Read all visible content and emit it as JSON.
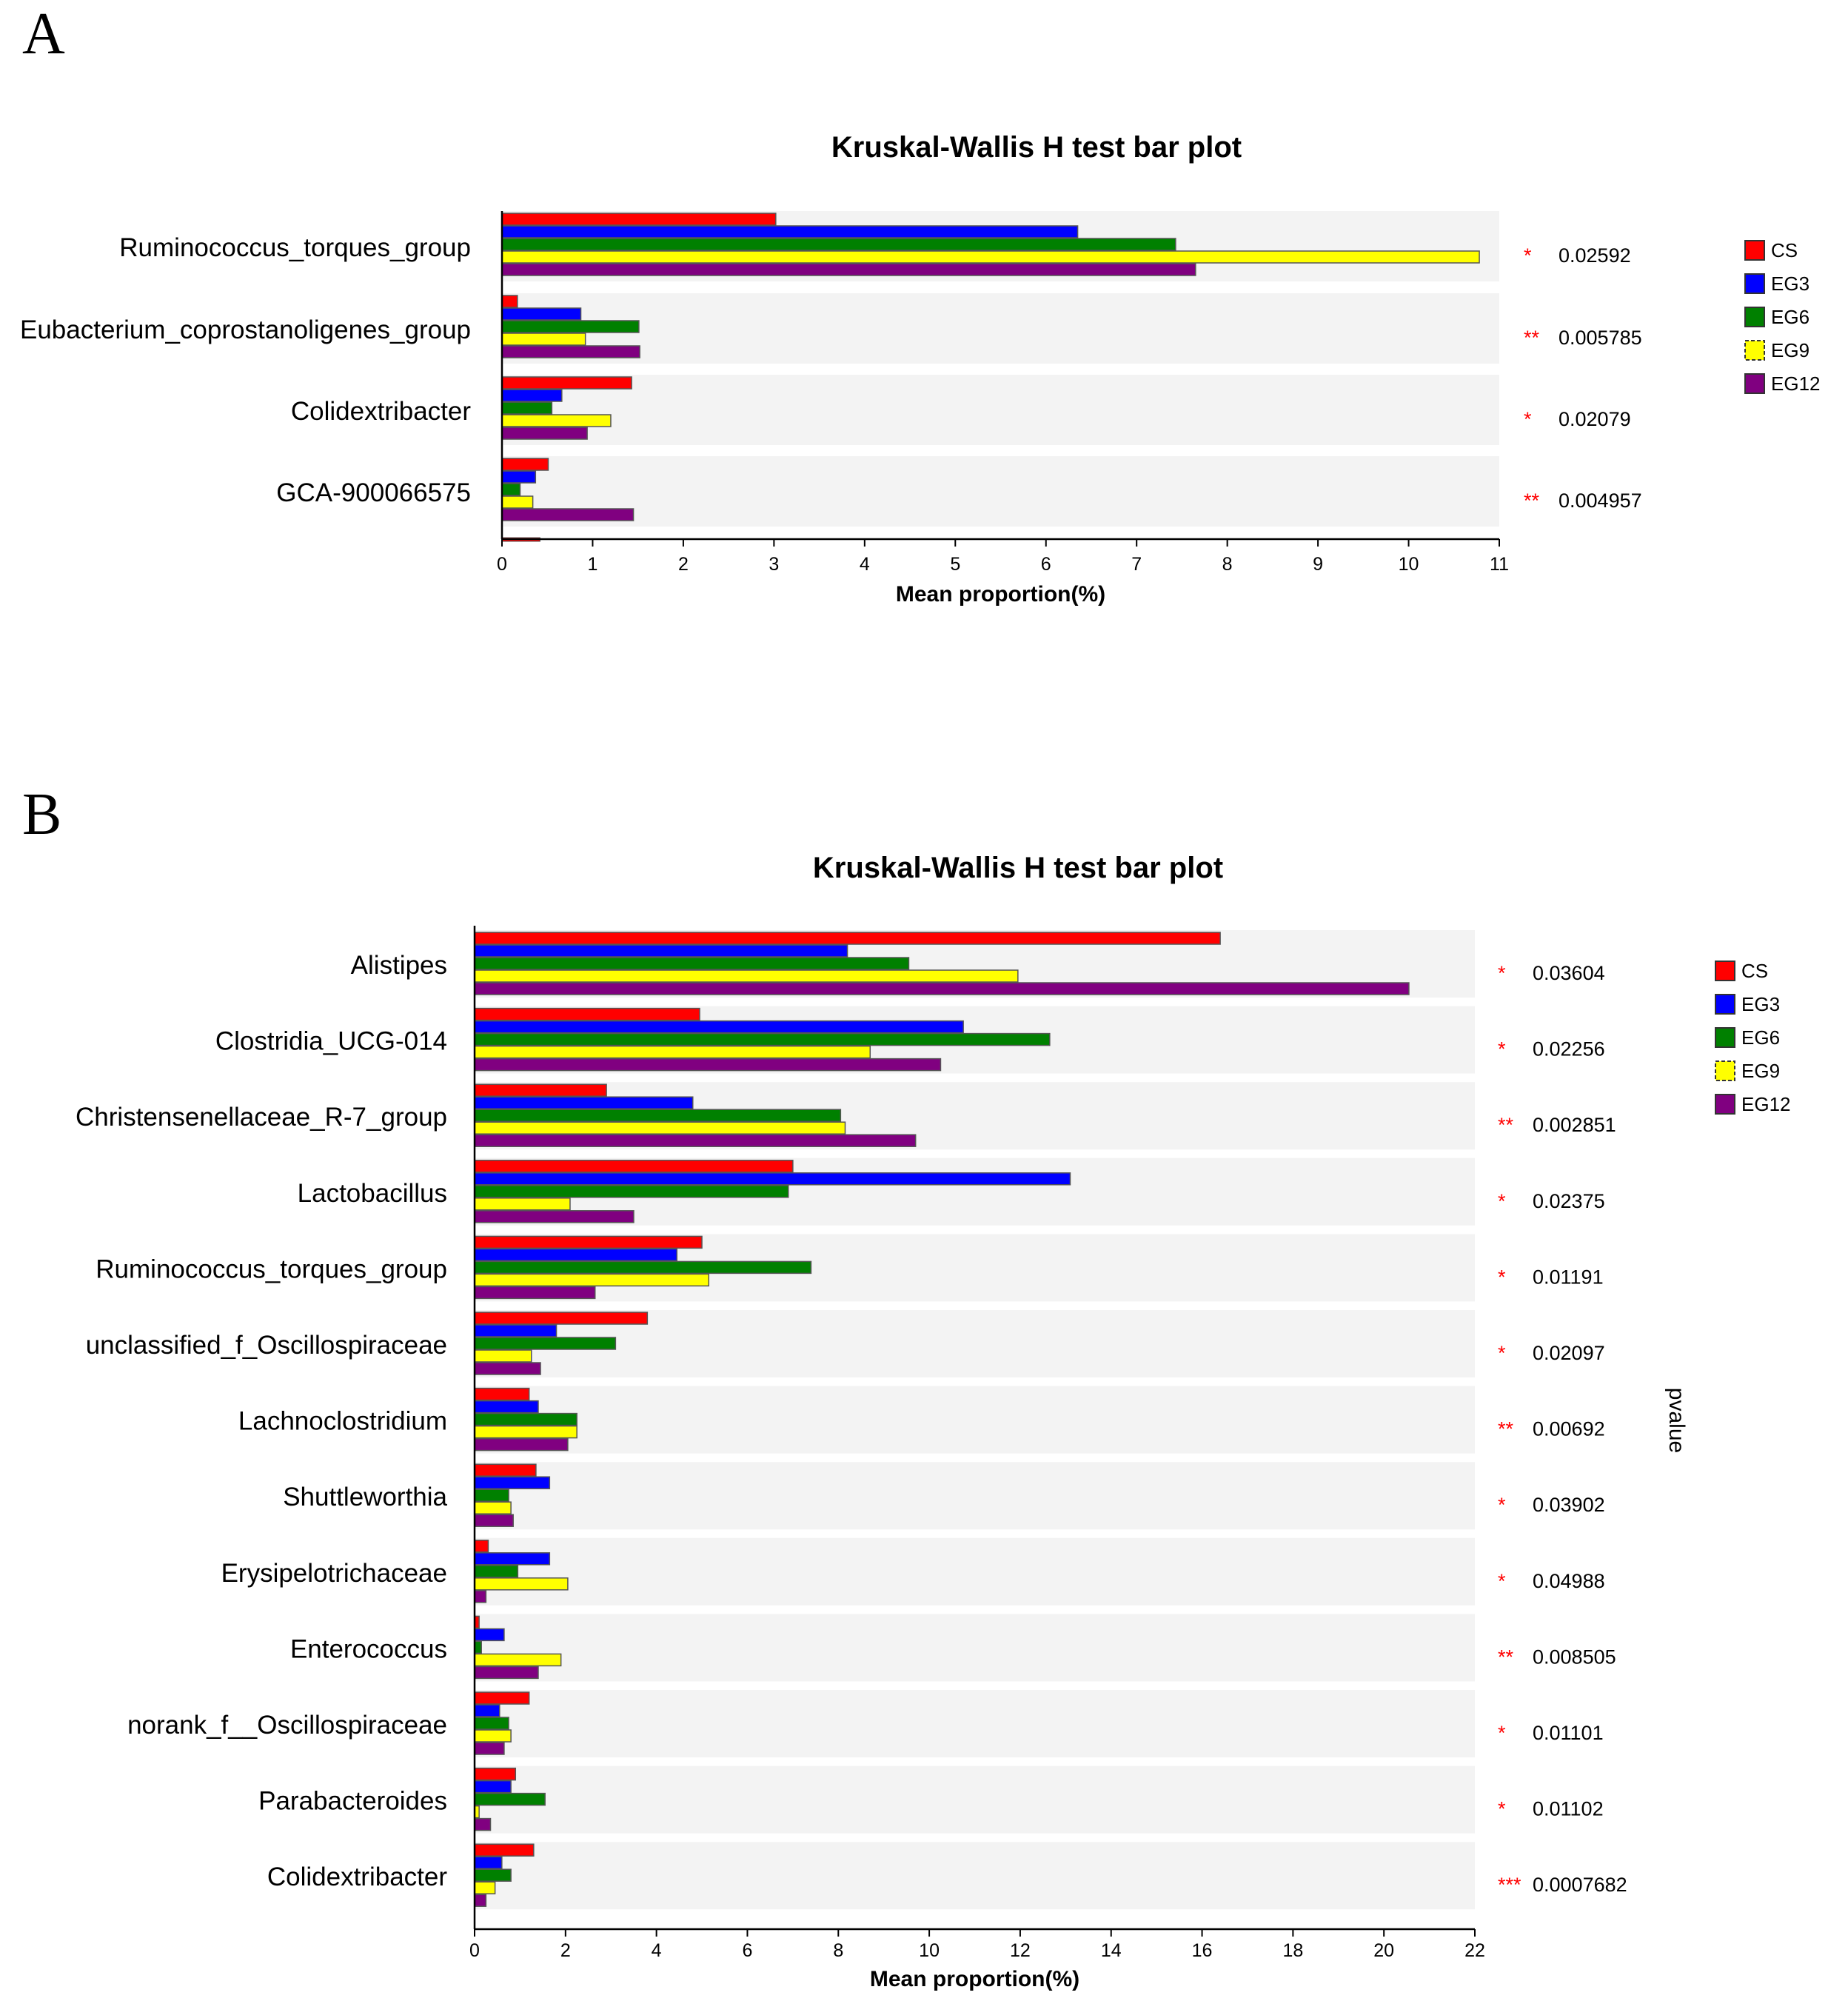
{
  "panels": [
    {
      "letter": "A",
      "title": "Kruskal-Wallis H test bar plot",
      "xlabel": "Mean proportion(%)",
      "ylabel_right": "",
      "series_names": [
        "CS",
        "EG3",
        "EG6",
        "EG9",
        "EG12"
      ],
      "series_colors": [
        "#ff0000",
        "#0000ff",
        "#008000",
        "#ffff00",
        "#800080"
      ],
      "xlim": [
        0,
        11
      ],
      "xticks": [
        "0",
        "1",
        "2",
        "3",
        "4",
        "5",
        "6",
        "7",
        "8",
        "9",
        "10",
        "11"
      ],
      "categories": [
        {
          "name": "Ruminococcus_torques_group",
          "values": [
            3.02,
            6.35,
            7.43,
            10.78,
            7.65
          ],
          "stars": "*",
          "pvalue": "0.02592"
        },
        {
          "name": "Eubacterium_coprostanoligenes_group",
          "values": [
            0.17,
            0.87,
            1.51,
            0.92,
            1.52
          ],
          "stars": "**",
          "pvalue": "0.005785"
        },
        {
          "name": "Colidextribacter",
          "values": [
            1.43,
            0.66,
            0.55,
            1.2,
            0.94
          ],
          "stars": "*",
          "pvalue": "0.02079"
        },
        {
          "name": "GCA-900066575",
          "values": [
            0.51,
            0.37,
            0.2,
            0.34,
            1.45
          ],
          "stars": "**",
          "pvalue": "0.004957"
        }
      ],
      "trailing_bar": {
        "series": "CS",
        "value": 0.42
      }
    },
    {
      "letter": "B",
      "title": "Kruskal-Wallis H test bar plot",
      "xlabel": "Mean proportion(%)",
      "ylabel_right": "pvalue",
      "series_names": [
        "CS",
        "EG3",
        "EG6",
        "EG9",
        "EG12"
      ],
      "series_colors": [
        "#ff0000",
        "#0000ff",
        "#008000",
        "#ffff00",
        "#800080"
      ],
      "xlim": [
        0,
        22
      ],
      "xticks": [
        "0",
        "2",
        "4",
        "6",
        "8",
        "10",
        "12",
        "14",
        "16",
        "18",
        "20",
        "22"
      ],
      "categories": [
        {
          "name": "Alistipes",
          "values": [
            16.4,
            8.2,
            9.55,
            11.95,
            20.55
          ],
          "stars": "*",
          "pvalue": "0.03604"
        },
        {
          "name": "Clostridia_UCG-014",
          "values": [
            4.95,
            10.75,
            12.65,
            8.7,
            10.25
          ],
          "stars": "*",
          "pvalue": "0.02256"
        },
        {
          "name": "Christensenellaceae_R-7_group",
          "values": [
            2.9,
            4.8,
            8.05,
            8.15,
            9.7
          ],
          "stars": "**",
          "pvalue": "0.002851"
        },
        {
          "name": "Lactobacillus",
          "values": [
            7.0,
            13.1,
            6.9,
            2.1,
            3.5
          ],
          "stars": "*",
          "pvalue": "0.02375"
        },
        {
          "name": "Ruminococcus_torques_group",
          "values": [
            5.0,
            4.45,
            7.4,
            5.15,
            2.65
          ],
          "stars": "*",
          "pvalue": "0.01191"
        },
        {
          "name": "unclassified_f_Oscillospiraceae",
          "values": [
            3.8,
            1.8,
            3.1,
            1.25,
            1.45
          ],
          "stars": "*",
          "pvalue": "0.02097"
        },
        {
          "name": "Lachnoclostridium",
          "values": [
            1.2,
            1.4,
            2.25,
            2.25,
            2.05
          ],
          "stars": "**",
          "pvalue": "0.00692"
        },
        {
          "name": "Shuttleworthia",
          "values": [
            1.35,
            1.65,
            0.75,
            0.8,
            0.85
          ],
          "stars": "*",
          "pvalue": "0.03902"
        },
        {
          "name": "Erysipelotrichaceae",
          "values": [
            0.3,
            1.65,
            0.95,
            2.05,
            0.25
          ],
          "stars": "*",
          "pvalue": "0.04988"
        },
        {
          "name": "Enterococcus",
          "values": [
            0.1,
            0.65,
            0.15,
            1.9,
            1.4
          ],
          "stars": "**",
          "pvalue": "0.008505"
        },
        {
          "name": "norank_f__Oscillospiraceae",
          "values": [
            1.2,
            0.55,
            0.75,
            0.8,
            0.65
          ],
          "stars": "*",
          "pvalue": "0.01101"
        },
        {
          "name": "Parabacteroides",
          "values": [
            0.9,
            0.8,
            1.55,
            0.1,
            0.35
          ],
          "stars": "*",
          "pvalue": "0.01102"
        },
        {
          "name": "Colidextribacter",
          "values": [
            1.3,
            0.6,
            0.8,
            0.45,
            0.25
          ],
          "stars": "***",
          "pvalue": "0.0007682"
        }
      ]
    }
  ],
  "chart_data": [
    {
      "type": "bar",
      "orientation": "horizontal",
      "title": "Kruskal-Wallis H test bar plot",
      "xlabel": "Mean proportion(%)",
      "ylabel": "",
      "xlim": [
        0,
        11
      ],
      "categories": [
        "Ruminococcus_torques_group",
        "Eubacterium_coprostanoligenes_group",
        "Colidextribacter",
        "GCA-900066575"
      ],
      "series": [
        {
          "name": "CS",
          "values": [
            3.02,
            0.17,
            1.43,
            0.51
          ]
        },
        {
          "name": "EG3",
          "values": [
            6.35,
            0.87,
            0.66,
            0.37
          ]
        },
        {
          "name": "EG6",
          "values": [
            7.43,
            1.51,
            0.55,
            0.2
          ]
        },
        {
          "name": "EG9",
          "values": [
            10.78,
            0.92,
            1.2,
            0.34
          ]
        },
        {
          "name": "EG12",
          "values": [
            7.65,
            1.52,
            0.94,
            1.45
          ]
        }
      ],
      "pvalues": [
        "0.02592",
        "0.005785",
        "0.02079",
        "0.004957"
      ],
      "legend": "right"
    },
    {
      "type": "bar",
      "orientation": "horizontal",
      "title": "Kruskal-Wallis H test bar plot",
      "xlabel": "Mean proportion(%)",
      "ylabel": "pvalue",
      "xlim": [
        0,
        22
      ],
      "categories": [
        "Alistipes",
        "Clostridia_UCG-014",
        "Christensenellaceae_R-7_group",
        "Lactobacillus",
        "Ruminococcus_torques_group",
        "unclassified_f_Oscillospiraceae",
        "Lachnoclostridium",
        "Shuttleworthia",
        "Erysipelotrichaceae",
        "Enterococcus",
        "norank_f__Oscillospiraceae",
        "Parabacteroides",
        "Colidextribacter"
      ],
      "series": [
        {
          "name": "CS",
          "values": [
            16.4,
            4.95,
            2.9,
            7.0,
            5.0,
            3.8,
            1.2,
            1.35,
            0.3,
            0.1,
            1.2,
            0.9,
            1.3
          ]
        },
        {
          "name": "EG3",
          "values": [
            8.2,
            10.75,
            4.8,
            13.1,
            4.45,
            1.8,
            1.4,
            1.65,
            1.65,
            0.65,
            0.55,
            0.8,
            0.6
          ]
        },
        {
          "name": "EG6",
          "values": [
            9.55,
            12.65,
            8.05,
            6.9,
            7.4,
            3.1,
            2.25,
            0.75,
            0.95,
            0.15,
            0.75,
            1.55,
            0.8
          ]
        },
        {
          "name": "EG9",
          "values": [
            11.95,
            8.7,
            8.15,
            2.1,
            5.15,
            1.25,
            2.25,
            0.8,
            2.05,
            1.9,
            0.8,
            0.1,
            0.45
          ]
        },
        {
          "name": "EG12",
          "values": [
            20.55,
            10.25,
            9.7,
            3.5,
            2.65,
            1.45,
            2.05,
            0.85,
            0.25,
            1.4,
            0.65,
            0.35,
            0.25
          ]
        }
      ],
      "pvalues": [
        "0.03604",
        "0.02256",
        "0.002851",
        "0.02375",
        "0.01191",
        "0.02097",
        "0.00692",
        "0.03902",
        "0.04988",
        "0.008505",
        "0.01101",
        "0.01102",
        "0.0007682"
      ],
      "legend": "right"
    }
  ]
}
